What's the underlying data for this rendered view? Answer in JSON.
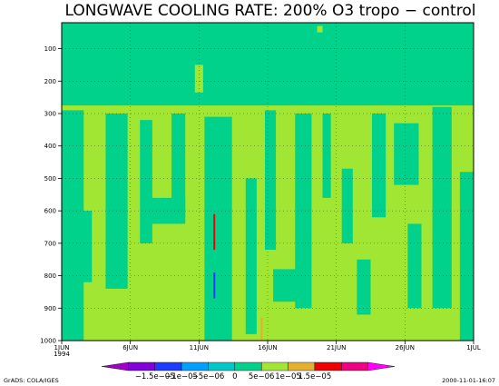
{
  "chart_data": {
    "type": "heatmap",
    "title": "LONGWAVE COOLING RATE: 200% O3 tropo − control",
    "xlabel": "",
    "ylabel": "",
    "x_ticks": [
      "1JUN",
      "6JUN",
      "11JUN",
      "16JUN",
      "21JUN",
      "26JUN",
      "1JUL"
    ],
    "x_year": "1994",
    "y_ticks": [
      "100",
      "200",
      "300",
      "400",
      "500",
      "600",
      "700",
      "800",
      "900",
      "1000"
    ],
    "ylim": [
      1000,
      20
    ],
    "grid": true,
    "y_scale": "linear, pressure axis inverted",
    "colorbar": {
      "bins": [
        {
          "color": "#a000c8"
        },
        {
          "color": "#8200dc"
        },
        {
          "color": "#1e3cff"
        },
        {
          "color": "#00a0ff"
        },
        {
          "color": "#00c8c8"
        },
        {
          "color": "#00d28c"
        },
        {
          "color": "#a0e632"
        },
        {
          "color": "#e6af2d"
        },
        {
          "color": "#f00000"
        },
        {
          "color": "#f00082"
        },
        {
          "color": "#ff00ff"
        }
      ],
      "labels": [
        "−1.5e−05",
        "−1e−05",
        "−5e−06",
        "0",
        "5e−06",
        "1e−05",
        "1.5e−05"
      ]
    },
    "fields": {
      "background": "#00d28c",
      "positive_light": "#a0e632",
      "description_regions": [
        {
          "level": "5e-06 to 1e-05",
          "color": "#a0e632",
          "p_range": [
            270,
            1000
          ]
        },
        {
          "level": "0 to 5e-06",
          "color": "#00d28c",
          "p_range": [
            20,
            270
          ]
        }
      ]
    }
  },
  "footer": {
    "left": "GrADS: COLA/IGES",
    "right": "2000-11-01-16:07"
  }
}
